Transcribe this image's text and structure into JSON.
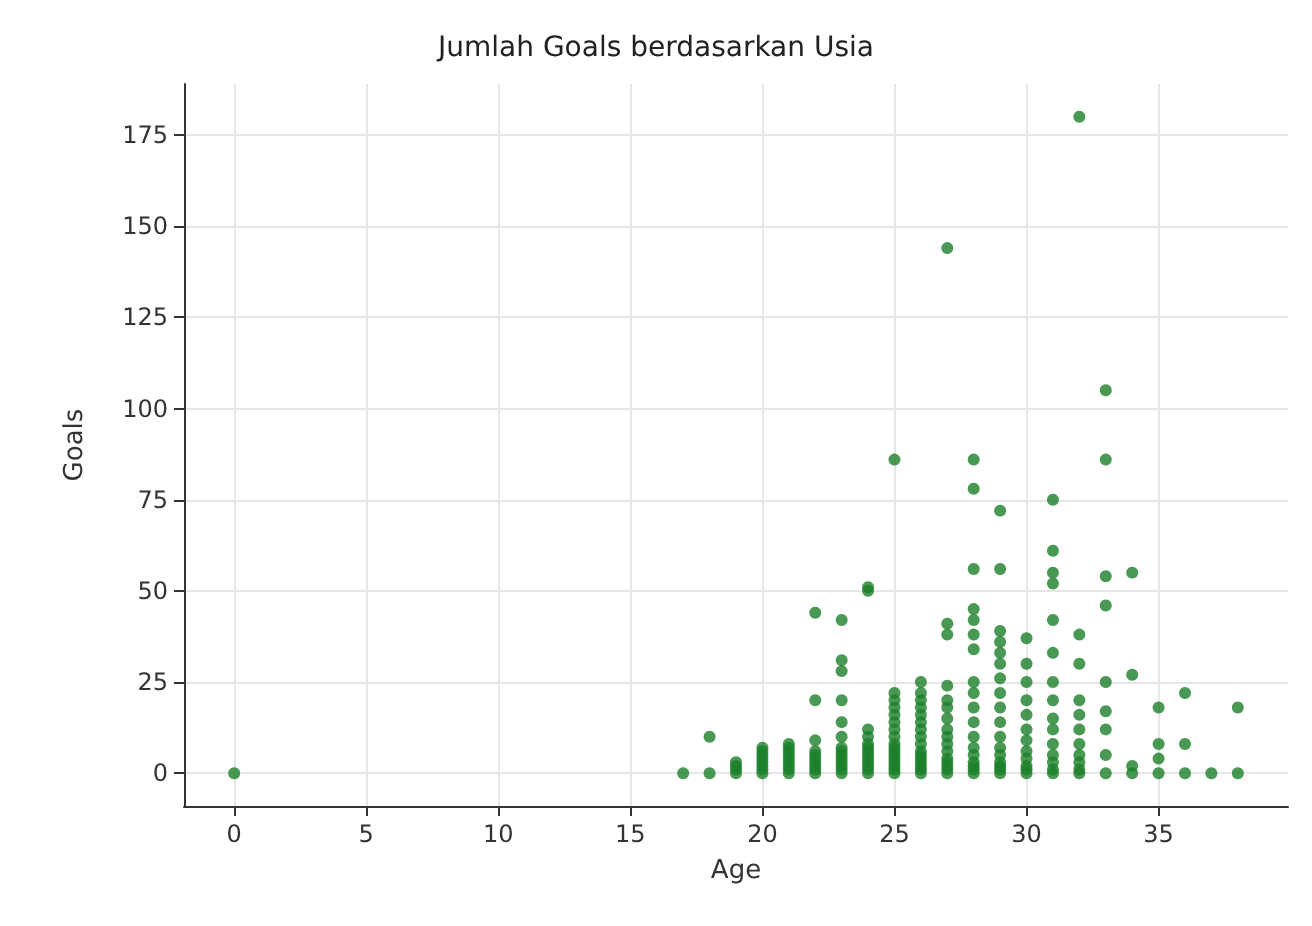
{
  "chart_data": {
    "type": "scatter",
    "title": "Jumlah Goals berdasarkan Usia",
    "xlabel": "Age",
    "ylabel": "Goals",
    "color": "#1b7f2b",
    "marker": "circle",
    "grid": true,
    "xlim": [
      -1.9,
      39.9
    ],
    "ylim": [
      -9,
      189
    ],
    "xticks": [
      0,
      5,
      10,
      15,
      20,
      25,
      30,
      35
    ],
    "yticks": [
      0,
      25,
      50,
      75,
      100,
      125,
      150,
      175
    ],
    "x": [
      0,
      17,
      29,
      18,
      18,
      19,
      19,
      19,
      19,
      20,
      20,
      20,
      20,
      20,
      20,
      20,
      20,
      21,
      21,
      21,
      21,
      21,
      21,
      21,
      21,
      21,
      22,
      22,
      22,
      22,
      22,
      22,
      22,
      22,
      22,
      22,
      23,
      23,
      23,
      23,
      23,
      23,
      23,
      23,
      23,
      23,
      23,
      23,
      23,
      23,
      24,
      24,
      24,
      24,
      24,
      24,
      24,
      24,
      24,
      24,
      24,
      24,
      24,
      25,
      25,
      25,
      25,
      25,
      25,
      25,
      25,
      25,
      25,
      25,
      25,
      25,
      25,
      25,
      25,
      25,
      26,
      26,
      26,
      26,
      26,
      26,
      26,
      26,
      26,
      26,
      26,
      26,
      26,
      26,
      26,
      26,
      27,
      27,
      27,
      27,
      27,
      27,
      27,
      27,
      27,
      27,
      27,
      27,
      27,
      27,
      27,
      27,
      28,
      28,
      28,
      28,
      28,
      28,
      28,
      28,
      28,
      28,
      28,
      28,
      28,
      28,
      28,
      28,
      28,
      28,
      29,
      29,
      29,
      29,
      29,
      29,
      29,
      29,
      29,
      29,
      29,
      29,
      29,
      29,
      29,
      29,
      30,
      30,
      30,
      30,
      30,
      30,
      30,
      30,
      30,
      30,
      30,
      30,
      31,
      31,
      31,
      31,
      31,
      31,
      31,
      31,
      31,
      31,
      31,
      31,
      31,
      31,
      31,
      32,
      32,
      32,
      32,
      32,
      32,
      32,
      32,
      32,
      32,
      32,
      33,
      33,
      33,
      33,
      33,
      33,
      33,
      33,
      33,
      34,
      34,
      34,
      34,
      35,
      35,
      35,
      35,
      36,
      36,
      36,
      37,
      38,
      38
    ],
    "values": [
      0,
      0,
      0,
      10,
      0,
      1,
      2,
      3,
      0,
      1,
      2,
      3,
      4,
      5,
      6,
      7,
      0,
      1,
      2,
      3,
      4,
      5,
      6,
      7,
      8,
      0,
      1,
      2,
      3,
      4,
      5,
      6,
      9,
      20,
      44,
      0,
      1,
      2,
      3,
      4,
      5,
      6,
      7,
      10,
      14,
      20,
      28,
      31,
      42,
      0,
      1,
      2,
      3,
      4,
      5,
      6,
      7,
      8,
      10,
      12,
      50,
      51,
      0,
      1,
      2,
      3,
      4,
      5,
      6,
      7,
      8,
      10,
      12,
      14,
      16,
      18,
      20,
      22,
      86,
      0,
      1,
      2,
      3,
      4,
      5,
      6,
      8,
      10,
      12,
      14,
      16,
      18,
      20,
      22,
      25,
      0,
      1,
      2,
      3,
      4,
      6,
      8,
      10,
      12,
      15,
      18,
      20,
      24,
      38,
      41,
      144,
      0,
      1,
      2,
      3,
      5,
      7,
      10,
      14,
      18,
      22,
      25,
      34,
      38,
      42,
      45,
      56,
      78,
      86,
      0,
      1,
      2,
      3,
      5,
      7,
      10,
      14,
      18,
      22,
      26,
      30,
      33,
      36,
      39,
      56,
      72,
      0,
      1,
      2,
      4,
      6,
      9,
      12,
      16,
      20,
      25,
      30,
      37,
      0,
      1,
      3,
      5,
      8,
      12,
      15,
      20,
      25,
      33,
      42,
      52,
      55,
      61,
      75,
      0,
      1,
      3,
      5,
      8,
      12,
      16,
      20,
      30,
      38,
      180,
      0,
      5,
      12,
      17,
      25,
      46,
      54,
      86,
      105,
      0,
      2,
      27,
      55,
      0,
      4,
      8,
      18,
      0,
      8,
      22,
      0,
      0,
      18
    ]
  }
}
